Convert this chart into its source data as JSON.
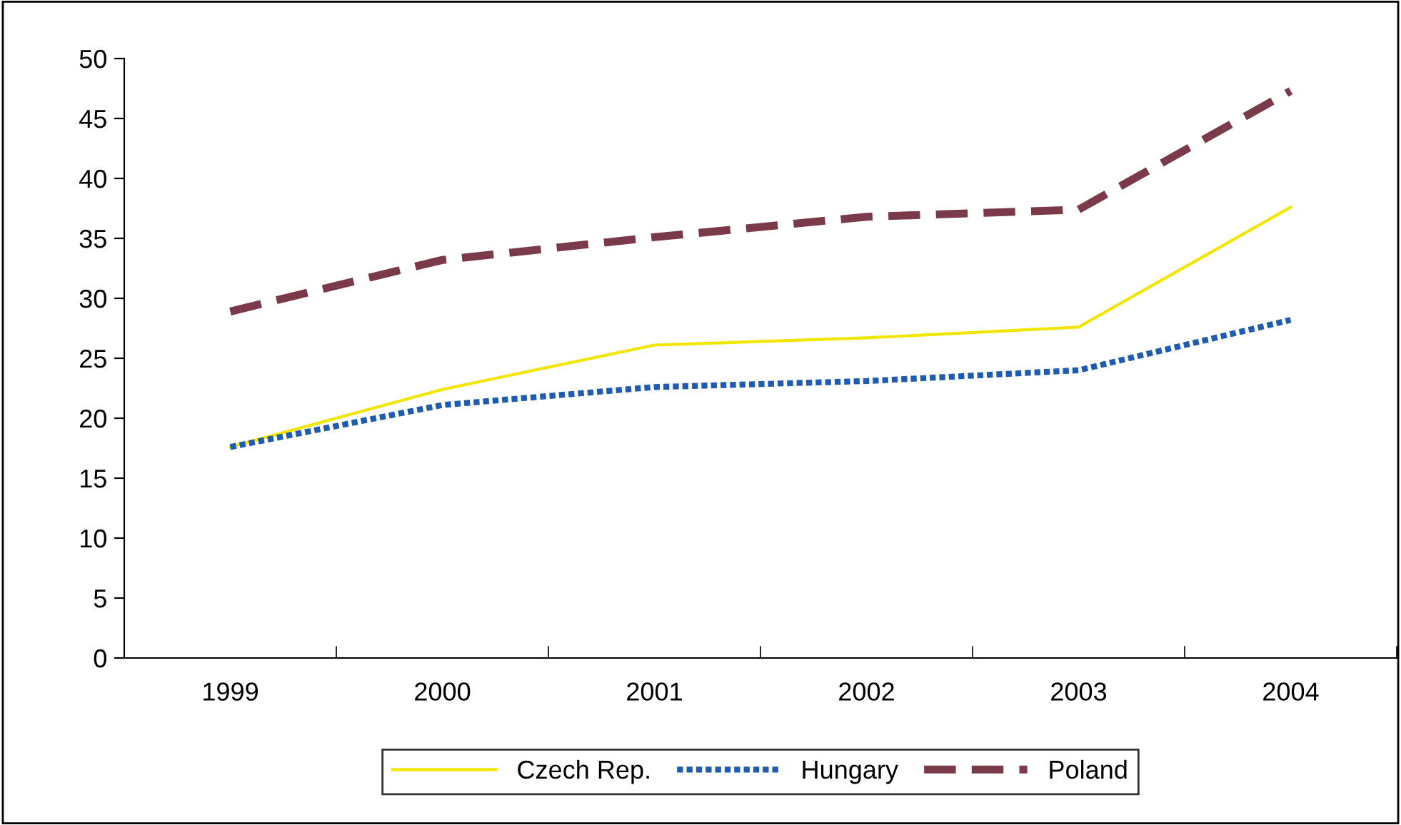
{
  "chart_data": {
    "type": "line",
    "categories": [
      "1999",
      "2000",
      "2001",
      "2002",
      "2003",
      "2004"
    ],
    "series": [
      {
        "name": "Czech Rep.",
        "color": "#f2e600",
        "line_style": "solid",
        "values": [
          17.6,
          22.4,
          26.1,
          26.7,
          27.6,
          37.6
        ]
      },
      {
        "name": "Hungary",
        "color": "#1f5cb0",
        "line_style": "dotted",
        "values": [
          17.6,
          21.1,
          22.6,
          23.1,
          24.0,
          28.2
        ]
      },
      {
        "name": "Poland",
        "color": "#7b3a4a",
        "line_style": "dashed",
        "values": [
          28.9,
          33.2,
          35.1,
          36.8,
          37.4,
          47.3
        ]
      }
    ],
    "ylim": [
      0,
      50
    ],
    "yticks": [
      0,
      5,
      10,
      15,
      20,
      25,
      30,
      35,
      40,
      45,
      50
    ],
    "grid": false,
    "legend": "bottom",
    "marker": "none"
  }
}
